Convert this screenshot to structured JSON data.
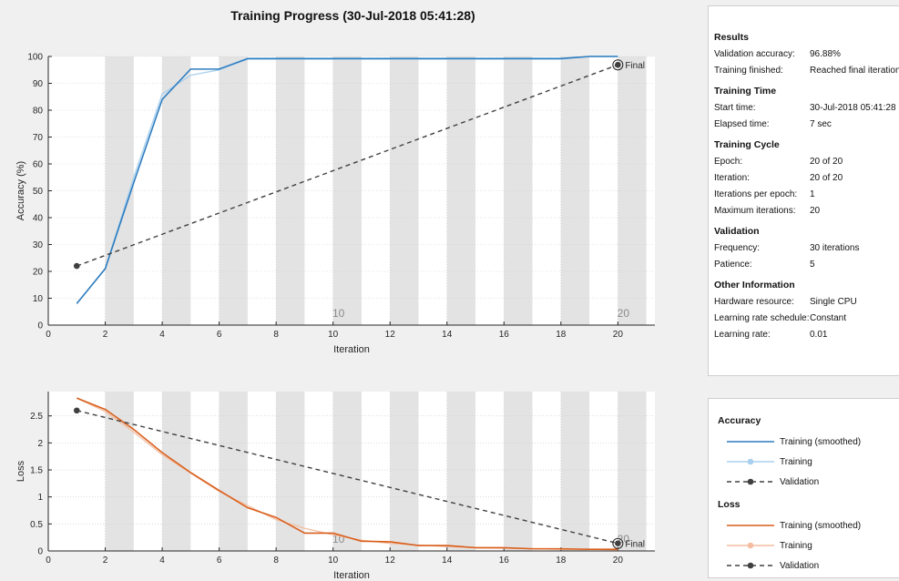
{
  "title": "Training Progress (30-Jul-2018 05:41:28)",
  "info": {
    "sections": [
      {
        "title": "Results",
        "rows": [
          {
            "label": "Validation accuracy:",
            "value": "96.88%"
          },
          {
            "label": "Training finished:",
            "value": "Reached final iteration"
          }
        ]
      },
      {
        "title": "Training Time",
        "rows": [
          {
            "label": "Start time:",
            "value": "30-Jul-2018 05:41:28"
          },
          {
            "label": "Elapsed time:",
            "value": "7 sec"
          }
        ]
      },
      {
        "title": "Training Cycle",
        "rows": [
          {
            "label": "Epoch:",
            "value": "20 of 20"
          },
          {
            "label": "Iteration:",
            "value": "20 of 20"
          },
          {
            "label": "Iterations per epoch:",
            "value": "1"
          },
          {
            "label": "Maximum iterations:",
            "value": "20"
          }
        ]
      },
      {
        "title": "Validation",
        "rows": [
          {
            "label": "Frequency:",
            "value": "30 iterations"
          },
          {
            "label": "Patience:",
            "value": "5"
          }
        ]
      },
      {
        "title": "Other Information",
        "rows": [
          {
            "label": "Hardware resource:",
            "value": "Single CPU"
          },
          {
            "label": "Learning rate schedule:",
            "value": "Constant"
          },
          {
            "label": "Learning rate:",
            "value": "0.01"
          }
        ]
      }
    ]
  },
  "legend": {
    "accuracy_title": "Accuracy",
    "loss_title": "Loss",
    "items": {
      "smoothed": "Training (smoothed)",
      "training": "Training",
      "validation": "Validation"
    }
  },
  "colors": {
    "acc_smoothed": "#2e7dc0",
    "acc_training": "#a9d0ee",
    "loss_smoothed": "#d95f1c",
    "loss_training": "#f4bda0",
    "validation": "#404040",
    "band": "#e3e3e3"
  },
  "chart_data": [
    {
      "type": "line",
      "title": "",
      "xlabel": "Iteration",
      "ylabel": "Accuracy (%)",
      "xlim": [
        0,
        21.3
      ],
      "ylim": [
        0,
        100
      ],
      "xticks": [
        0,
        2,
        4,
        6,
        8,
        10,
        12,
        14,
        16,
        18,
        20
      ],
      "yticks": [
        0,
        10,
        20,
        30,
        40,
        50,
        60,
        70,
        80,
        90,
        100
      ],
      "epoch_bands": [
        [
          2,
          3
        ],
        [
          4,
          5
        ],
        [
          6,
          7
        ],
        [
          8,
          9
        ],
        [
          10,
          11
        ],
        [
          12,
          13
        ],
        [
          14,
          15
        ],
        [
          16,
          17
        ],
        [
          18,
          19
        ],
        [
          20,
          21
        ]
      ],
      "epoch_labels": [
        {
          "x": 10,
          "text": "10"
        },
        {
          "x": 20,
          "text": "20"
        }
      ],
      "grid": true,
      "series": [
        {
          "name": "Training (smoothed)",
          "x": [
            1,
            2,
            3,
            4,
            5,
            6,
            7,
            8,
            9,
            10,
            11,
            12,
            13,
            14,
            15,
            16,
            17,
            18,
            19,
            20
          ],
          "values": [
            8,
            21,
            53,
            84,
            95.3,
            95.3,
            99.2,
            99.2,
            99.2,
            99.2,
            99.2,
            99.2,
            99.2,
            99.2,
            99.2,
            99.2,
            99.2,
            99.2,
            100,
            100
          ]
        },
        {
          "name": "Training",
          "x": [
            1,
            2,
            3,
            4,
            5,
            6,
            7,
            8,
            9,
            10,
            11,
            12,
            13,
            14,
            15,
            16,
            17,
            18,
            19,
            20
          ],
          "values": [
            8,
            21,
            55,
            86,
            93,
            95,
            99,
            99,
            99,
            99,
            99,
            99,
            99,
            99,
            99,
            99,
            99,
            99,
            100,
            100
          ]
        },
        {
          "name": "Validation",
          "x": [
            1,
            20
          ],
          "values": [
            22,
            96.88
          ]
        }
      ],
      "annotations": [
        {
          "x": 20,
          "y": 96.88,
          "text": "Final"
        }
      ]
    },
    {
      "type": "line",
      "title": "",
      "xlabel": "Iteration",
      "ylabel": "Loss",
      "xlim": [
        0,
        21.3
      ],
      "ylim": [
        0,
        2.95
      ],
      "xticks": [
        0,
        2,
        4,
        6,
        8,
        10,
        12,
        14,
        16,
        18,
        20
      ],
      "yticks": [
        0,
        0.5,
        1,
        1.5,
        2,
        2.5
      ],
      "ytick_labels": [
        "0",
        "0.5",
        "1",
        "1.5",
        "2",
        "2.5"
      ],
      "epoch_bands": [
        [
          2,
          3
        ],
        [
          4,
          5
        ],
        [
          6,
          7
        ],
        [
          8,
          9
        ],
        [
          10,
          11
        ],
        [
          12,
          13
        ],
        [
          14,
          15
        ],
        [
          16,
          17
        ],
        [
          18,
          19
        ],
        [
          20,
          21
        ]
      ],
      "epoch_labels": [
        {
          "x": 10,
          "text": "10"
        },
        {
          "x": 20,
          "text": "20"
        }
      ],
      "grid": true,
      "series": [
        {
          "name": "Training (smoothed)",
          "x": [
            1,
            2,
            3,
            4,
            5,
            6,
            7,
            8,
            9,
            10,
            11,
            12,
            13,
            14,
            15,
            16,
            17,
            18,
            19,
            20
          ],
          "values": [
            2.83,
            2.62,
            2.25,
            1.82,
            1.45,
            1.12,
            0.8,
            0.62,
            0.33,
            0.33,
            0.18,
            0.17,
            0.1,
            0.1,
            0.06,
            0.06,
            0.04,
            0.04,
            0.03,
            0.03
          ]
        },
        {
          "name": "Training",
          "x": [
            1,
            2,
            3,
            4,
            5,
            6,
            7,
            8,
            9,
            10,
            11,
            12,
            13,
            14,
            15,
            16,
            17,
            18,
            19,
            20
          ],
          "values": [
            2.83,
            2.58,
            2.2,
            1.78,
            1.44,
            1.1,
            0.84,
            0.58,
            0.42,
            0.3,
            0.2,
            0.14,
            0.11,
            0.08,
            0.06,
            0.05,
            0.04,
            0.03,
            0.03,
            0.02
          ]
        },
        {
          "name": "Validation",
          "x": [
            1,
            20
          ],
          "values": [
            2.6,
            0.14
          ]
        }
      ],
      "annotations": [
        {
          "x": 20,
          "y": 0.14,
          "text": "Final"
        }
      ]
    }
  ]
}
